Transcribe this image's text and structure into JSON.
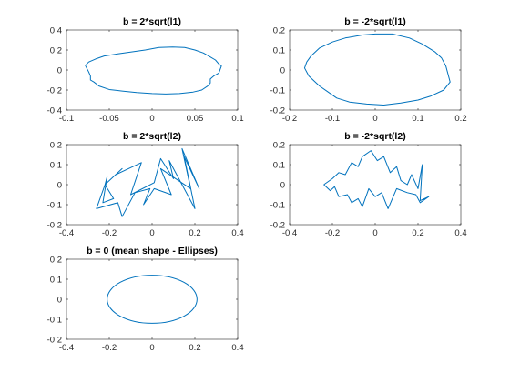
{
  "figure": {
    "background": "#ffffff",
    "line_color": "#0072bd"
  },
  "chart_data": [
    {
      "type": "line",
      "title": "b = 2*sqrt(l1)",
      "xlabel": "",
      "ylabel": "",
      "xlim": [
        -0.1,
        0.1
      ],
      "ylim": [
        -0.4,
        0.4
      ],
      "xticks": [
        -0.1,
        -0.05,
        0,
        0.05,
        0.1
      ],
      "xtick_labels": [
        "-0.1",
        "-0.05",
        "0",
        "0.05",
        "0.1"
      ],
      "yticks": [
        -0.4,
        -0.2,
        0,
        0.2,
        0.4
      ],
      "ytick_labels": [
        "-0.4",
        "-0.2",
        "0",
        "0.2",
        "0.4"
      ],
      "grid": false,
      "series": [
        {
          "color": "#0072bd",
          "x": [
            -0.078,
            -0.074,
            -0.066,
            -0.056,
            -0.041,
            -0.025,
            -0.008,
            0.008,
            0.024,
            0.038,
            0.05,
            0.06,
            0.068,
            0.074,
            0.078,
            0.081,
            0.078,
            0.072,
            0.068,
            0.068,
            0.065,
            0.058,
            0.048,
            0.032,
            0.016,
            0,
            -0.018,
            -0.035,
            -0.05,
            -0.062,
            -0.068,
            -0.072,
            -0.072,
            -0.074,
            -0.078
          ],
          "y": [
            0.045,
            0.08,
            0.11,
            0.14,
            0.16,
            0.18,
            0.2,
            0.225,
            0.23,
            0.225,
            0.2,
            0.17,
            0.13,
            0.1,
            0.06,
            0.04,
            -0.03,
            -0.06,
            -0.09,
            -0.13,
            -0.16,
            -0.2,
            -0.22,
            -0.235,
            -0.24,
            -0.235,
            -0.225,
            -0.21,
            -0.195,
            -0.16,
            -0.12,
            -0.1,
            -0.06,
            -0.02,
            0.045
          ]
        }
      ]
    },
    {
      "type": "line",
      "title": "b = -2*sqrt(l1)",
      "xlabel": "",
      "ylabel": "",
      "xlim": [
        -0.2,
        0.2
      ],
      "ylim": [
        -0.2,
        0.2
      ],
      "xticks": [
        -0.2,
        -0.1,
        0,
        0.1,
        0.2
      ],
      "xtick_labels": [
        "-0.2",
        "-0.1",
        "0",
        "0.1",
        "0.2"
      ],
      "yticks": [
        -0.2,
        -0.1,
        0,
        0.1,
        0.2
      ],
      "ytick_labels": [
        "-0.2",
        "-0.1",
        "0",
        "0.1",
        "0.2"
      ],
      "grid": false,
      "series": [
        {
          "color": "#0072bd",
          "x": [
            -0.16,
            -0.15,
            -0.13,
            -0.1,
            -0.07,
            -0.03,
            0,
            0.04,
            0.08,
            0.11,
            0.14,
            0.155,
            0.165,
            0.17,
            0.175,
            0.16,
            0.13,
            0.1,
            0.06,
            0.02,
            -0.02,
            -0.06,
            -0.09,
            -0.11,
            -0.13,
            -0.14,
            -0.155,
            -0.165,
            -0.16
          ],
          "y": [
            0.04,
            0.07,
            0.11,
            0.14,
            0.16,
            0.175,
            0.18,
            0.18,
            0.16,
            0.13,
            0.09,
            0.06,
            0.02,
            -0.02,
            -0.06,
            -0.1,
            -0.13,
            -0.15,
            -0.165,
            -0.175,
            -0.17,
            -0.16,
            -0.14,
            -0.11,
            -0.08,
            -0.06,
            -0.03,
            0.01,
            0.04
          ]
        }
      ]
    },
    {
      "type": "line",
      "title": "b = 2*sqrt(l2)",
      "xlabel": "",
      "ylabel": "",
      "xlim": [
        -0.4,
        0.4
      ],
      "ylim": [
        -0.2,
        0.2
      ],
      "xticks": [
        -0.4,
        -0.2,
        0,
        0.2,
        0.4
      ],
      "xtick_labels": [
        "-0.4",
        "-0.2",
        "0",
        "0.2",
        "0.4"
      ],
      "yticks": [
        -0.2,
        -0.1,
        0,
        0.1,
        0.2
      ],
      "ytick_labels": [
        "-0.2",
        "-0.1",
        "0",
        "0.1",
        "0.2"
      ],
      "grid": false,
      "series": [
        {
          "color": "#0072bd",
          "x": [
            -0.21,
            -0.22,
            -0.14,
            -0.17,
            -0.05,
            -0.1,
            0.01,
            0.04,
            0.1,
            0.08,
            0.2,
            0.15,
            0.22,
            0.14,
            0.18,
            0.04,
            0.09,
            0.01,
            -0.04,
            -0.01,
            -0.08,
            -0.14,
            -0.16,
            -0.26,
            -0.22,
            -0.18,
            -0.23,
            -0.21
          ],
          "y": [
            0.04,
            0.0,
            0.08,
            0.05,
            0.11,
            -0.05,
            0.01,
            0.13,
            0.03,
            0.12,
            -0.12,
            0.14,
            -0.02,
            0.18,
            -0.02,
            0.08,
            -0.05,
            -0.02,
            -0.1,
            -0.02,
            -0.04,
            -0.16,
            -0.09,
            -0.12,
            0.0,
            -0.07,
            -0.09,
            0.04
          ]
        }
      ]
    },
    {
      "type": "line",
      "title": "b = -2*sqrt(l2)",
      "xlabel": "",
      "ylabel": "",
      "xlim": [
        -0.4,
        0.4
      ],
      "ylim": [
        -0.2,
        0.2
      ],
      "xticks": [
        -0.4,
        -0.2,
        0,
        0.2,
        0.4
      ],
      "xtick_labels": [
        "-0.4",
        "-0.2",
        "0",
        "0.2",
        "0.4"
      ],
      "yticks": [
        -0.2,
        -0.1,
        0,
        0.1,
        0.2
      ],
      "ytick_labels": [
        "-0.2",
        "-0.1",
        "0",
        "0.1",
        "0.2"
      ],
      "grid": false,
      "series": [
        {
          "color": "#0072bd",
          "x": [
            -0.24,
            -0.2,
            -0.17,
            -0.14,
            -0.11,
            -0.08,
            -0.06,
            -0.02,
            0.01,
            0.04,
            0.07,
            0.1,
            0.12,
            0.15,
            0.17,
            0.2,
            0.22,
            0.21,
            0.25,
            0.21,
            0.19,
            0.15,
            0.1,
            0.06,
            0.03,
            0.0,
            -0.03,
            -0.06,
            -0.08,
            -0.11,
            -0.13,
            -0.17,
            -0.19,
            -0.21,
            -0.24
          ],
          "y": [
            0.0,
            0.03,
            0.06,
            0.05,
            0.11,
            0.09,
            0.14,
            0.17,
            0.12,
            0.14,
            0.06,
            0.09,
            0.02,
            0.0,
            0.05,
            -0.02,
            0.1,
            -0.08,
            -0.06,
            -0.09,
            -0.05,
            -0.04,
            -0.02,
            -0.12,
            -0.04,
            -0.06,
            -0.02,
            -0.11,
            -0.07,
            -0.09,
            -0.05,
            -0.06,
            -0.01,
            -0.03,
            0.0
          ]
        }
      ]
    },
    {
      "type": "line",
      "title": "b = 0 (mean shape - Ellipses)",
      "xlabel": "",
      "ylabel": "",
      "xlim": [
        -0.4,
        0.4
      ],
      "ylim": [
        -0.2,
        0.2
      ],
      "xticks": [
        -0.4,
        -0.2,
        0,
        0.2,
        0.4
      ],
      "xtick_labels": [
        "-0.4",
        "-0.2",
        "0",
        "0.2",
        "0.4"
      ],
      "yticks": [
        -0.2,
        -0.1,
        0,
        0.1,
        0.2
      ],
      "ytick_labels": [
        "-0.2",
        "-0.1",
        "0",
        "0.1",
        "0.2"
      ],
      "grid": false,
      "series": [
        {
          "color": "#0072bd",
          "ellipse": {
            "center": [
              0,
              0
            ],
            "rx": 0.21,
            "ry": 0.12
          }
        }
      ]
    }
  ]
}
